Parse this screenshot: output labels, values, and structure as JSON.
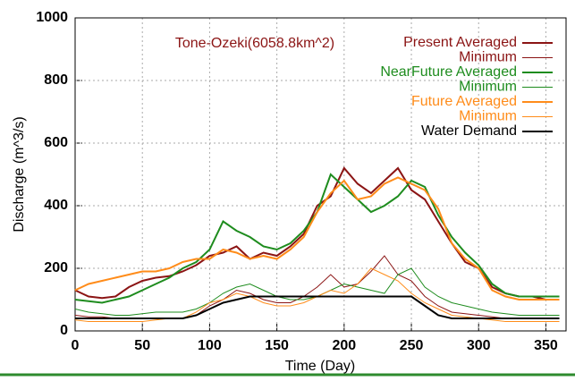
{
  "chart_data": {
    "type": "line",
    "title": "Tone-Ozeki(6058.8km^2)",
    "x_label": "Time (Day)",
    "y_label": "Discharge (m^3/s)",
    "x": [
      0,
      10,
      20,
      30,
      40,
      50,
      60,
      70,
      80,
      90,
      100,
      110,
      120,
      130,
      140,
      150,
      160,
      170,
      180,
      190,
      200,
      210,
      220,
      230,
      240,
      250,
      260,
      270,
      280,
      290,
      300,
      310,
      320,
      330,
      340,
      350,
      360
    ],
    "xlim": [
      0,
      365
    ],
    "xticks": [
      0,
      50,
      100,
      150,
      200,
      250,
      300,
      350
    ],
    "ylim": [
      0,
      1000
    ],
    "yticks": [
      0,
      200,
      400,
      600,
      800,
      1000
    ],
    "grid": true,
    "legend": "top right",
    "series": [
      {
        "name": "Present Averaged",
        "color": "#8b1414",
        "linewidth": 2,
        "values": [
          130,
          110,
          105,
          110,
          140,
          160,
          170,
          175,
          190,
          210,
          240,
          250,
          270,
          230,
          250,
          240,
          270,
          310,
          400,
          430,
          520,
          470,
          440,
          480,
          520,
          450,
          420,
          350,
          280,
          220,
          200,
          140,
          120,
          110,
          110,
          100,
          100
        ]
      },
      {
        "name": "Minimum",
        "color": "#8b1414",
        "linewidth": 1,
        "values": [
          50,
          45,
          45,
          40,
          40,
          40,
          40,
          40,
          40,
          50,
          80,
          100,
          130,
          120,
          100,
          90,
          90,
          110,
          140,
          180,
          140,
          150,
          190,
          240,
          180,
          160,
          110,
          80,
          60,
          55,
          50,
          45,
          40,
          40,
          40,
          40,
          40
        ]
      },
      {
        "name": "NearFuture Averaged",
        "color": "#1e8c1e",
        "linewidth": 2,
        "values": [
          100,
          95,
          90,
          100,
          110,
          130,
          150,
          170,
          200,
          220,
          260,
          350,
          320,
          300,
          270,
          260,
          280,
          320,
          380,
          500,
          460,
          420,
          380,
          400,
          430,
          480,
          460,
          370,
          300,
          250,
          210,
          150,
          120,
          110,
          110,
          110,
          110
        ]
      },
      {
        "name": "Minimum",
        "color": "#1e8c1e",
        "linewidth": 1,
        "values": [
          70,
          60,
          55,
          50,
          50,
          55,
          60,
          60,
          60,
          70,
          90,
          120,
          140,
          150,
          130,
          110,
          100,
          100,
          110,
          130,
          150,
          140,
          130,
          120,
          180,
          200,
          140,
          110,
          90,
          80,
          70,
          60,
          55,
          50,
          50,
          50,
          50
        ]
      },
      {
        "name": "Future Averaged",
        "color": "#ff8c1a",
        "linewidth": 2,
        "values": [
          130,
          150,
          160,
          170,
          180,
          190,
          190,
          200,
          220,
          230,
          230,
          260,
          250,
          230,
          240,
          230,
          260,
          300,
          380,
          440,
          480,
          420,
          430,
          470,
          490,
          470,
          450,
          390,
          280,
          230,
          200,
          130,
          110,
          100,
          100,
          100,
          100
        ]
      },
      {
        "name": "Minimum",
        "color": "#ff8c1a",
        "linewidth": 1,
        "values": [
          35,
          30,
          30,
          30,
          30,
          30,
          35,
          40,
          40,
          60,
          90,
          100,
          120,
          110,
          90,
          80,
          80,
          90,
          110,
          130,
          120,
          150,
          200,
          180,
          160,
          120,
          90,
          70,
          50,
          45,
          40,
          35,
          30,
          30,
          30,
          30,
          30
        ]
      },
      {
        "name": "Water Demand",
        "color": "#000000",
        "linewidth": 2,
        "values": [
          40,
          40,
          40,
          40,
          40,
          40,
          40,
          40,
          40,
          50,
          70,
          90,
          100,
          110,
          110,
          110,
          110,
          110,
          110,
          110,
          110,
          110,
          110,
          110,
          110,
          110,
          80,
          50,
          40,
          40,
          40,
          40,
          40,
          40,
          40,
          40,
          40
        ]
      }
    ]
  }
}
